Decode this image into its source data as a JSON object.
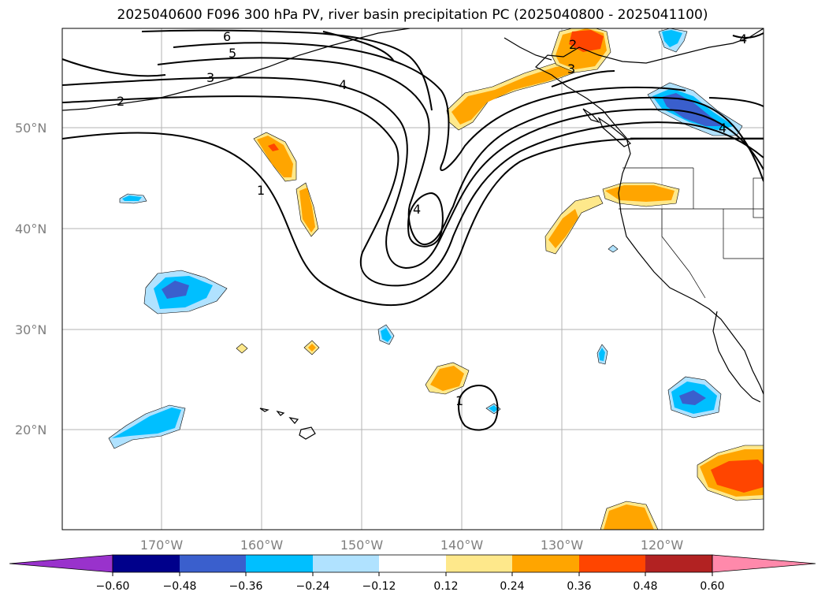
{
  "title": "2025040600 F096 300 hPa PV, river basin precipitation PC (2025040800 - 2025041100)",
  "map": {
    "lat_labels": [
      "50°N",
      "40°N",
      "30°N",
      "20°N"
    ],
    "lon_labels": [
      "170°W",
      "160°W",
      "150°W",
      "140°W",
      "130°W",
      "120°W"
    ],
    "contour_labels": [
      "6",
      "5",
      "4",
      "3",
      "2",
      "1",
      "4",
      "2",
      "3",
      "4",
      "1",
      "4"
    ]
  },
  "colorbar": {
    "ticks": [
      "−0.60",
      "−0.48",
      "−0.36",
      "−0.24",
      "−0.12",
      "0.12",
      "0.24",
      "0.36",
      "0.48",
      "0.60"
    ],
    "colors": [
      "#9932cc",
      "#00008b",
      "#3a5fcd",
      "#00bfff",
      "#b0e2ff",
      "#ffffff",
      "#fee88b",
      "#ffa500",
      "#ff4500",
      "#b22222",
      "#ff89ab"
    ]
  },
  "fill_colors": {
    "neg1": "#b0e2ff",
    "neg2": "#00bfff",
    "neg3": "#3a5fcd",
    "pos1": "#fee88b",
    "pos2": "#ffa500",
    "pos3": "#ff4500"
  }
}
